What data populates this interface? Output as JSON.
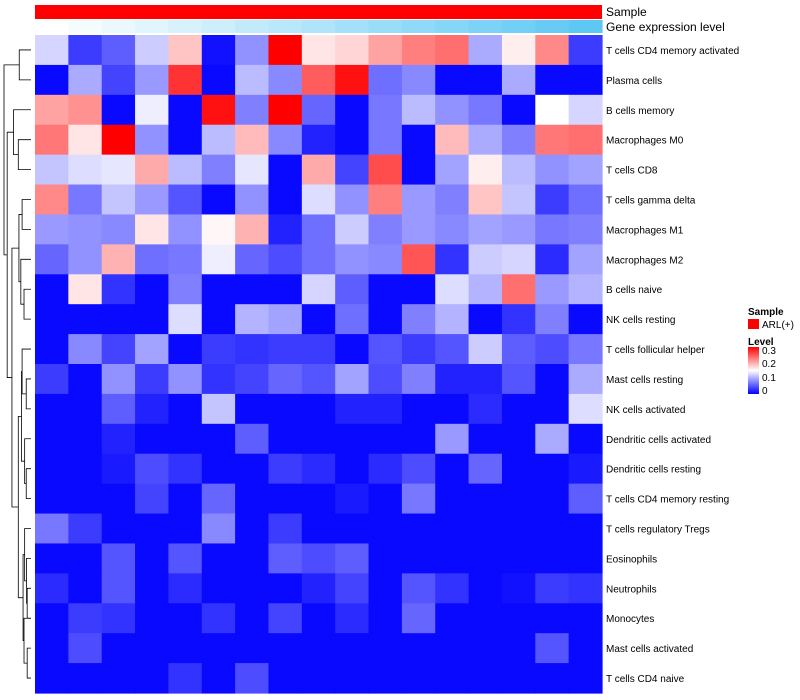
{
  "chart_data": {
    "type": "heatmap",
    "annotation_tracks": [
      {
        "label": "Sample",
        "color": "#ff0000"
      },
      {
        "label": "Gene expression level",
        "gradient": [
          "#ffffff",
          "#5ec8f5"
        ]
      }
    ],
    "legend": {
      "sample_title": "Sample",
      "sample_entry": "ARL(+)",
      "sample_color": "#ff0000",
      "level_title": "Level",
      "level_ticks": [
        "0.3",
        "0.2",
        "0.1",
        "0"
      ],
      "scale_min": 0,
      "scale_max": 0.3,
      "colors": [
        "#0000ff",
        "#ffffff",
        "#ff0000"
      ]
    },
    "rows": [
      {
        "label": "T cells CD4 memory activated",
        "values": [
          0.125,
          0.035,
          0.055,
          0.12,
          0.185,
          0.01,
          0.085,
          0.3,
          0.165,
          0.175,
          0.205,
          0.225,
          0.235,
          0.1,
          0.16,
          0.22,
          0.035
        ]
      },
      {
        "label": "Plasma cells",
        "values": [
          0.005,
          0.1,
          0.04,
          0.09,
          0.27,
          0.005,
          0.11,
          0.08,
          0.245,
          0.29,
          0.065,
          0.08,
          0.005,
          0.005,
          0.1,
          0.005,
          0.005
        ]
      },
      {
        "label": "B cells memory",
        "values": [
          0.205,
          0.215,
          0.005,
          0.14,
          0.005,
          0.29,
          0.075,
          0.3,
          0.06,
          0.005,
          0.07,
          0.11,
          0.085,
          0.07,
          0.005,
          0.15,
          0.125
        ]
      },
      {
        "label": "Macrophages M0",
        "values": [
          0.23,
          0.165,
          0.3,
          0.085,
          0.005,
          0.11,
          0.19,
          0.08,
          0.02,
          0.005,
          0.07,
          0.005,
          0.19,
          0.1,
          0.075,
          0.23,
          0.235
        ]
      },
      {
        "label": "T cells CD8",
        "values": [
          0.115,
          0.13,
          0.135,
          0.2,
          0.11,
          0.075,
          0.135,
          0.005,
          0.2,
          0.04,
          0.255,
          0.005,
          0.095,
          0.16,
          0.11,
          0.085,
          0.095
        ]
      },
      {
        "label": "T cells gamma delta",
        "values": [
          0.22,
          0.07,
          0.115,
          0.09,
          0.05,
          0.005,
          0.085,
          0.005,
          0.13,
          0.085,
          0.225,
          0.09,
          0.075,
          0.185,
          0.115,
          0.035,
          0.065
        ]
      },
      {
        "label": "Macrophages M1",
        "values": [
          0.09,
          0.085,
          0.08,
          0.165,
          0.085,
          0.155,
          0.195,
          0.02,
          0.065,
          0.12,
          0.075,
          0.09,
          0.08,
          0.095,
          0.09,
          0.07,
          0.075
        ]
      },
      {
        "label": "Macrophages M2",
        "values": [
          0.06,
          0.085,
          0.195,
          0.065,
          0.07,
          0.14,
          0.06,
          0.045,
          0.065,
          0.085,
          0.08,
          0.25,
          0.03,
          0.12,
          0.125,
          0.025,
          0.095
        ]
      },
      {
        "label": "B cells naive",
        "values": [
          0.005,
          0.165,
          0.03,
          0.005,
          0.075,
          0.005,
          0.005,
          0.005,
          0.125,
          0.055,
          0.005,
          0.005,
          0.13,
          0.105,
          0.235,
          0.09,
          0.105
        ]
      },
      {
        "label": "NK cells resting",
        "values": [
          0.005,
          0.005,
          0.005,
          0.005,
          0.13,
          0.005,
          0.105,
          0.095,
          0.005,
          0.065,
          0.005,
          0.075,
          0.105,
          0.005,
          0.03,
          0.075,
          0.005
        ]
      },
      {
        "label": "T cells follicular helper",
        "values": [
          0.005,
          0.08,
          0.04,
          0.095,
          0.005,
          0.035,
          0.03,
          0.035,
          0.035,
          0.005,
          0.05,
          0.035,
          0.05,
          0.12,
          0.055,
          0.045,
          0.07
        ]
      },
      {
        "label": "Mast cells resting",
        "values": [
          0.035,
          0.005,
          0.085,
          0.035,
          0.085,
          0.03,
          0.04,
          0.06,
          0.05,
          0.095,
          0.045,
          0.075,
          0.02,
          0.02,
          0.05,
          0.005,
          0.1
        ]
      },
      {
        "label": "NK cells activated",
        "values": [
          0.005,
          0.005,
          0.055,
          0.02,
          0.005,
          0.115,
          0.005,
          0.005,
          0.005,
          0.02,
          0.02,
          0.005,
          0.005,
          0.025,
          0.005,
          0.005,
          0.13
        ]
      },
      {
        "label": "Dendritic cells activated",
        "values": [
          0.005,
          0.005,
          0.02,
          0.005,
          0.005,
          0.005,
          0.055,
          0.005,
          0.005,
          0.005,
          0.005,
          0.005,
          0.09,
          0.005,
          0.005,
          0.1,
          0.005
        ]
      },
      {
        "label": "Dendritic cells resting",
        "values": [
          0.005,
          0.005,
          0.015,
          0.045,
          0.03,
          0.005,
          0.005,
          0.035,
          0.025,
          0.005,
          0.025,
          0.045,
          0.005,
          0.06,
          0.005,
          0.005,
          0.015
        ]
      },
      {
        "label": "T cells CD4 memory resting",
        "values": [
          0.005,
          0.005,
          0.005,
          0.04,
          0.005,
          0.06,
          0.005,
          0.005,
          0.005,
          0.015,
          0.005,
          0.07,
          0.005,
          0.005,
          0.005,
          0.005,
          0.055
        ]
      },
      {
        "label": "T cells regulatory  Tregs",
        "values": [
          0.07,
          0.035,
          0.005,
          0.005,
          0.005,
          0.08,
          0.005,
          0.035,
          0.005,
          0.005,
          0.005,
          0.005,
          0.005,
          0.005,
          0.005,
          0.005,
          0.005
        ]
      },
      {
        "label": "Eosinophils",
        "values": [
          0.005,
          0.005,
          0.05,
          0.005,
          0.05,
          0.005,
          0.005,
          0.055,
          0.045,
          0.055,
          0.005,
          0.005,
          0.005,
          0.005,
          0.005,
          0.005,
          0.005
        ]
      },
      {
        "label": "Neutrophils",
        "values": [
          0.025,
          0.005,
          0.05,
          0.005,
          0.025,
          0.005,
          0.005,
          0.005,
          0.02,
          0.04,
          0.005,
          0.05,
          0.03,
          0.005,
          0.01,
          0.035,
          0.03
        ]
      },
      {
        "label": "Monocytes",
        "values": [
          0.005,
          0.035,
          0.03,
          0.005,
          0.005,
          0.03,
          0.005,
          0.04,
          0.005,
          0.025,
          0.005,
          0.06,
          0.005,
          0.005,
          0.005,
          0.005,
          0.005
        ]
      },
      {
        "label": "Mast cells activated",
        "values": [
          0.005,
          0.045,
          0.005,
          0.005,
          0.005,
          0.005,
          0.005,
          0.005,
          0.005,
          0.005,
          0.005,
          0.005,
          0.005,
          0.005,
          0.005,
          0.05,
          0.005
        ]
      },
      {
        "label": "T cells CD4 naive",
        "values": [
          0.005,
          0.005,
          0.005,
          0.005,
          0.03,
          0.005,
          0.045,
          0.005,
          0.005,
          0.005,
          0.005,
          0.005,
          0.005,
          0.005,
          0.005,
          0.005,
          0.005
        ]
      }
    ],
    "dendrogram_merges": [
      [
        1,
        2,
        0.37
      ],
      [
        6,
        7,
        0.28
      ],
      [
        9,
        10,
        0.22
      ],
      [
        12,
        13,
        0.15
      ],
      [
        15,
        16,
        0.15
      ],
      [
        19,
        20,
        0.12
      ],
      [
        21,
        22,
        0.12
      ],
      [
        8,
        9,
        0.32
      ],
      [
        11,
        12,
        0.28
      ],
      [
        18,
        19,
        0.14
      ],
      [
        20,
        21,
        0.22
      ],
      [
        14,
        15,
        0.2
      ],
      [
        17,
        18,
        0.2
      ],
      [
        4,
        5,
        0.4
      ],
      [
        3,
        4,
        0.55
      ],
      [
        6,
        8,
        0.38
      ],
      [
        11,
        14,
        0.3
      ],
      [
        17,
        20,
        0.25
      ],
      [
        11,
        17,
        0.4
      ],
      [
        6,
        11,
        0.6
      ],
      [
        3,
        6,
        0.75
      ],
      [
        1,
        3,
        0.85
      ]
    ]
  }
}
